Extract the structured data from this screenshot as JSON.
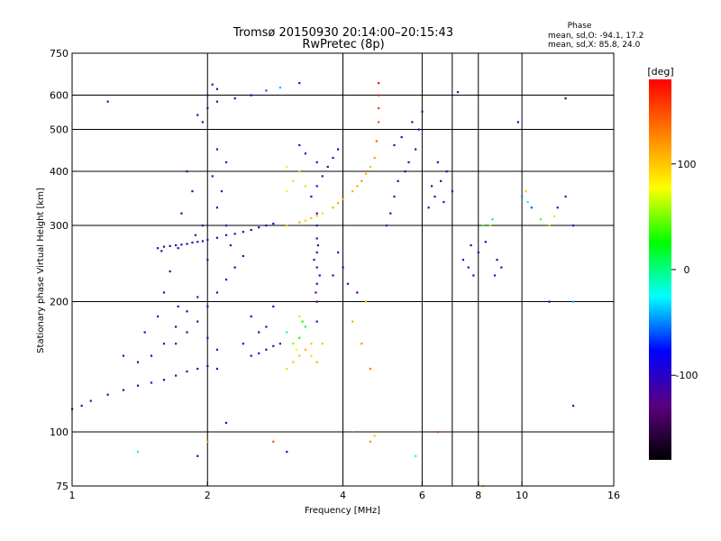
{
  "chart_data": {
    "type": "scatter",
    "title": "Tromsø 20150930 20:14:00–20:15:43",
    "subtitle": "RwPretec (8p)",
    "xlabel": "Frequency [MHz]",
    "ylabel": "Stationary phase Virtual Height [km]",
    "x_scale": "log",
    "y_scale": "log",
    "xlim": [
      1,
      16
    ],
    "ylim": [
      75,
      750
    ],
    "grid": true,
    "x_ticks": [
      {
        "v": 1,
        "label": "1"
      },
      {
        "v": 2,
        "label": "2"
      },
      {
        "v": 4,
        "label": "4"
      },
      {
        "v": 6,
        "label": "6"
      },
      {
        "v": 8,
        "label": "8"
      },
      {
        "v": 10,
        "label": "10"
      },
      {
        "v": 16,
        "label": "16"
      }
    ],
    "y_ticks": [
      {
        "v": 75,
        "label": "75"
      },
      {
        "v": 100,
        "label": "100"
      },
      {
        "v": 200,
        "label": "200"
      },
      {
        "v": 300,
        "label": "300"
      },
      {
        "v": 400,
        "label": "400"
      },
      {
        "v": 500,
        "label": "500"
      },
      {
        "v": 600,
        "label": "600"
      },
      {
        "v": 750,
        "label": "750"
      }
    ],
    "x_grid": [
      2,
      4,
      6,
      7,
      8,
      10
    ],
    "y_grid": [
      100,
      200,
      300,
      400,
      500,
      600
    ],
    "color_variable": "phase",
    "colorbar": {
      "unit_label": "[deg]",
      "range": [
        -180,
        180
      ],
      "ticks": [
        {
          "v": 100,
          "label": "100"
        },
        {
          "v": 0,
          "label": "0"
        },
        {
          "v": -100,
          "label": "-100"
        }
      ],
      "colors": [
        "#000000",
        "#5a0080",
        "#0000ff",
        "#00ffff",
        "#00ff00",
        "#ffff00",
        "#ff8000",
        "#ff0000"
      ]
    },
    "info": {
      "heading": "Phase",
      "line_o": "mean, sd,O: -94.1, 17.2",
      "line_x": "mean, sd,X:  85.8, 24.0"
    },
    "series": [
      {
        "points": [
          [
            1.6,
            268,
            -110
          ],
          [
            1.7,
            270,
            -112
          ],
          [
            1.8,
            272,
            -108
          ],
          [
            1.9,
            275,
            -115
          ],
          [
            2.0,
            278,
            -110
          ],
          [
            2.2,
            285,
            -112
          ],
          [
            2.4,
            290,
            -105
          ],
          [
            2.6,
            297,
            -100
          ],
          [
            2.8,
            303,
            -90
          ],
          [
            1.55,
            266,
            -118
          ],
          [
            1.65,
            269,
            -104
          ],
          [
            1.75,
            271,
            -111
          ],
          [
            1.85,
            274,
            -107
          ],
          [
            1.95,
            276,
            -113
          ],
          [
            2.1,
            281,
            -109
          ],
          [
            2.3,
            287,
            -106
          ],
          [
            2.5,
            293,
            -102
          ],
          [
            2.7,
            300,
            -98
          ],
          [
            1.58,
            262,
            -116
          ],
          [
            1.72,
            266,
            -109
          ]
        ]
      },
      {
        "points": [
          [
            3.0,
            300,
            100
          ],
          [
            3.2,
            305,
            110
          ],
          [
            3.4,
            312,
            105
          ],
          [
            3.6,
            320,
            95
          ],
          [
            3.8,
            330,
            110
          ],
          [
            4.0,
            345,
            115
          ],
          [
            4.2,
            360,
            108
          ],
          [
            4.4,
            380,
            118
          ],
          [
            4.5,
            395,
            112
          ],
          [
            4.6,
            410,
            105
          ],
          [
            4.7,
            430,
            120
          ],
          [
            4.75,
            470,
            140
          ],
          [
            4.8,
            520,
            150
          ],
          [
            4.8,
            560,
            160
          ],
          [
            4.8,
            600,
            170
          ],
          [
            4.8,
            640,
            175
          ],
          [
            3.3,
            308,
            98
          ],
          [
            3.5,
            316,
            102
          ],
          [
            3.9,
            338,
            112
          ],
          [
            4.3,
            370,
            114
          ]
        ]
      },
      {
        "points": [
          [
            1.9,
            540,
            -110
          ],
          [
            2.0,
            560,
            -115
          ],
          [
            2.1,
            580,
            -105
          ],
          [
            2.0,
            600,
            -112
          ],
          [
            2.1,
            620,
            -108
          ],
          [
            1.95,
            520,
            -118
          ],
          [
            2.05,
            635,
            -110
          ],
          [
            2.5,
            600,
            -80
          ],
          [
            2.7,
            615,
            -60
          ],
          [
            2.9,
            625,
            -40
          ],
          [
            3.2,
            640,
            -100
          ],
          [
            2.3,
            590,
            -100
          ]
        ]
      },
      {
        "points": [
          [
            1.9,
            180,
            -112
          ],
          [
            2.0,
            195,
            -108
          ],
          [
            2.1,
            210,
            -115
          ],
          [
            2.2,
            225,
            -110
          ],
          [
            2.3,
            240,
            -105
          ],
          [
            2.4,
            255,
            -100
          ],
          [
            1.8,
            170,
            -118
          ],
          [
            1.7,
            160,
            -110
          ],
          [
            2.2,
            300,
            -115
          ],
          [
            2.1,
            330,
            -110
          ],
          [
            2.15,
            360,
            -108
          ],
          [
            2.05,
            390,
            -112
          ],
          [
            2.2,
            420,
            -105
          ],
          [
            2.1,
            450,
            -115
          ],
          [
            1.75,
            320,
            -110
          ],
          [
            1.85,
            360,
            -108
          ],
          [
            1.8,
            400,
            -112
          ],
          [
            1.95,
            300,
            -110
          ],
          [
            2.0,
            250,
            -114
          ],
          [
            1.6,
            210,
            -110
          ],
          [
            1.65,
            235,
            -116
          ],
          [
            1.72,
            195,
            -104
          ],
          [
            2.25,
            270,
            -109
          ],
          [
            1.88,
            285,
            -113
          ]
        ]
      },
      {
        "points": [
          [
            1.0,
            113,
            -110
          ],
          [
            1.05,
            115,
            -100
          ],
          [
            1.1,
            118,
            -115
          ],
          [
            1.2,
            122,
            -110
          ],
          [
            1.3,
            125,
            -105
          ],
          [
            1.4,
            128,
            -112
          ],
          [
            1.5,
            130,
            -110
          ],
          [
            1.6,
            132,
            -108
          ],
          [
            1.7,
            135,
            -115
          ],
          [
            1.8,
            138,
            -110
          ],
          [
            1.9,
            140,
            -105
          ],
          [
            2.0,
            142,
            -112
          ],
          [
            2.1,
            140,
            -110
          ],
          [
            1.5,
            150,
            -108
          ],
          [
            1.6,
            160,
            -112
          ],
          [
            1.7,
            175,
            -110
          ],
          [
            1.8,
            190,
            -105
          ],
          [
            1.9,
            205,
            -115
          ],
          [
            2.0,
            165,
            -110
          ],
          [
            2.1,
            155,
            -108
          ],
          [
            1.4,
            145,
            -115
          ],
          [
            1.3,
            150,
            -110
          ],
          [
            1.55,
            185,
            -112
          ],
          [
            1.45,
            170,
            -106
          ]
        ]
      },
      {
        "points": [
          [
            2.5,
            150,
            -105
          ],
          [
            2.6,
            152,
            -110
          ],
          [
            2.7,
            155,
            -100
          ],
          [
            2.8,
            158,
            -108
          ],
          [
            2.9,
            160,
            -95
          ],
          [
            2.6,
            170,
            -110
          ],
          [
            2.7,
            175,
            -105
          ],
          [
            2.5,
            185,
            -100
          ],
          [
            2.8,
            195,
            -108
          ],
          [
            2.4,
            160,
            -112
          ]
        ]
      },
      {
        "points": [
          [
            3.0,
            140,
            95
          ],
          [
            3.1,
            145,
            100
          ],
          [
            3.2,
            150,
            105
          ],
          [
            3.3,
            155,
            110
          ],
          [
            3.4,
            160,
            100
          ],
          [
            3.2,
            165,
            20
          ],
          [
            3.3,
            175,
            10
          ],
          [
            3.1,
            160,
            50
          ],
          [
            3.4,
            150,
            90
          ],
          [
            3.2,
            185,
            60
          ],
          [
            3.0,
            170,
            -10
          ],
          [
            3.5,
            145,
            110
          ],
          [
            3.6,
            160,
            100
          ],
          [
            3.25,
            180,
            30
          ],
          [
            3.15,
            155,
            80
          ]
        ]
      },
      {
        "points": [
          [
            3.0,
            360,
            80
          ],
          [
            3.1,
            380,
            90
          ],
          [
            3.2,
            400,
            100
          ],
          [
            3.3,
            370,
            60
          ],
          [
            3.0,
            410,
            70
          ],
          [
            3.4,
            350,
            -110
          ],
          [
            3.5,
            370,
            -105
          ],
          [
            3.6,
            390,
            -112
          ],
          [
            3.7,
            410,
            -108
          ],
          [
            3.8,
            430,
            -110
          ],
          [
            3.9,
            450,
            -100
          ],
          [
            3.5,
            420,
            -115
          ],
          [
            3.3,
            440,
            -110
          ],
          [
            3.2,
            460,
            -108
          ]
        ]
      },
      {
        "points": [
          [
            3.5,
            280,
            -100
          ],
          [
            3.5,
            260,
            -110
          ],
          [
            3.5,
            240,
            -120
          ],
          [
            3.5,
            220,
            -90
          ],
          [
            3.5,
            200,
            -140
          ],
          [
            3.5,
            180,
            -100
          ],
          [
            3.45,
            250,
            -110
          ],
          [
            3.55,
            230,
            -105
          ],
          [
            3.5,
            300,
            -115
          ],
          [
            3.5,
            320,
            -112
          ],
          [
            3.48,
            210,
            -130
          ],
          [
            3.52,
            270,
            -108
          ]
        ]
      },
      {
        "points": [
          [
            5.0,
            300,
            -115
          ],
          [
            5.1,
            320,
            -110
          ],
          [
            5.2,
            350,
            -105
          ],
          [
            5.3,
            380,
            -112
          ],
          [
            5.5,
            400,
            -100
          ],
          [
            5.6,
            420,
            -110
          ],
          [
            5.8,
            450,
            -108
          ],
          [
            5.9,
            500,
            -112
          ],
          [
            6.0,
            550,
            -110
          ],
          [
            5.4,
            480,
            -105
          ],
          [
            5.7,
            520,
            -100
          ],
          [
            5.2,
            460,
            -110
          ]
        ]
      },
      {
        "points": [
          [
            6.2,
            330,
            -110
          ],
          [
            6.4,
            350,
            -100
          ],
          [
            6.6,
            380,
            -112
          ],
          [
            6.8,
            400,
            -105
          ],
          [
            7.0,
            360,
            -110
          ],
          [
            6.5,
            420,
            -108
          ],
          [
            6.7,
            340,
            -102
          ],
          [
            6.3,
            370,
            -115
          ]
        ]
      },
      {
        "points": [
          [
            7.4,
            250,
            -100
          ],
          [
            7.6,
            240,
            -110
          ],
          [
            7.8,
            230,
            -105
          ],
          [
            8.0,
            260,
            -112
          ],
          [
            8.2,
            300,
            40
          ],
          [
            8.6,
            310,
            10
          ],
          [
            8.8,
            250,
            -110
          ],
          [
            9.0,
            240,
            -105
          ],
          [
            8.5,
            300,
            60
          ],
          [
            8.7,
            230,
            -112
          ],
          [
            7.7,
            270,
            -108
          ],
          [
            8.3,
            275,
            -100
          ]
        ]
      },
      {
        "points": [
          [
            10.0,
            350,
            -50
          ],
          [
            10.2,
            360,
            100
          ],
          [
            10.5,
            330,
            -60
          ],
          [
            11.0,
            310,
            40
          ],
          [
            11.5,
            300,
            100
          ],
          [
            12.0,
            330,
            -110
          ],
          [
            12.5,
            350,
            -105
          ],
          [
            13.0,
            300,
            -100
          ],
          [
            10.3,
            340,
            -20
          ],
          [
            11.8,
            315,
            90
          ]
        ]
      },
      {
        "points": [
          [
            4.2,
            180,
            110
          ],
          [
            4.4,
            160,
            120
          ],
          [
            4.6,
            140,
            130
          ],
          [
            4.5,
            200,
            100
          ],
          [
            4.1,
            220,
            -110
          ],
          [
            4.3,
            210,
            -100
          ],
          [
            4.0,
            240,
            -110
          ],
          [
            3.8,
            230,
            -105
          ],
          [
            4.2,
            100,
            130
          ],
          [
            4.6,
            95,
            120
          ],
          [
            4.7,
            98,
            100
          ],
          [
            3.9,
            260,
            -108
          ]
        ]
      },
      {
        "points": [
          [
            1.4,
            90,
            -10
          ],
          [
            2.0,
            95,
            120
          ],
          [
            1.2,
            580,
            -110
          ],
          [
            2.8,
            95,
            150
          ],
          [
            3.0,
            90,
            -80
          ],
          [
            5.8,
            88,
            -20
          ],
          [
            8.2,
            75,
            60
          ],
          [
            13.0,
            115,
            -110
          ],
          [
            13.0,
            200,
            -40
          ],
          [
            2.2,
            105,
            -110
          ],
          [
            12.5,
            590,
            -140
          ],
          [
            7.2,
            610,
            -110
          ],
          [
            6.5,
            100,
            160
          ],
          [
            1.9,
            88,
            -105
          ],
          [
            9.8,
            520,
            -90
          ],
          [
            11.5,
            200,
            -100
          ]
        ]
      }
    ]
  }
}
